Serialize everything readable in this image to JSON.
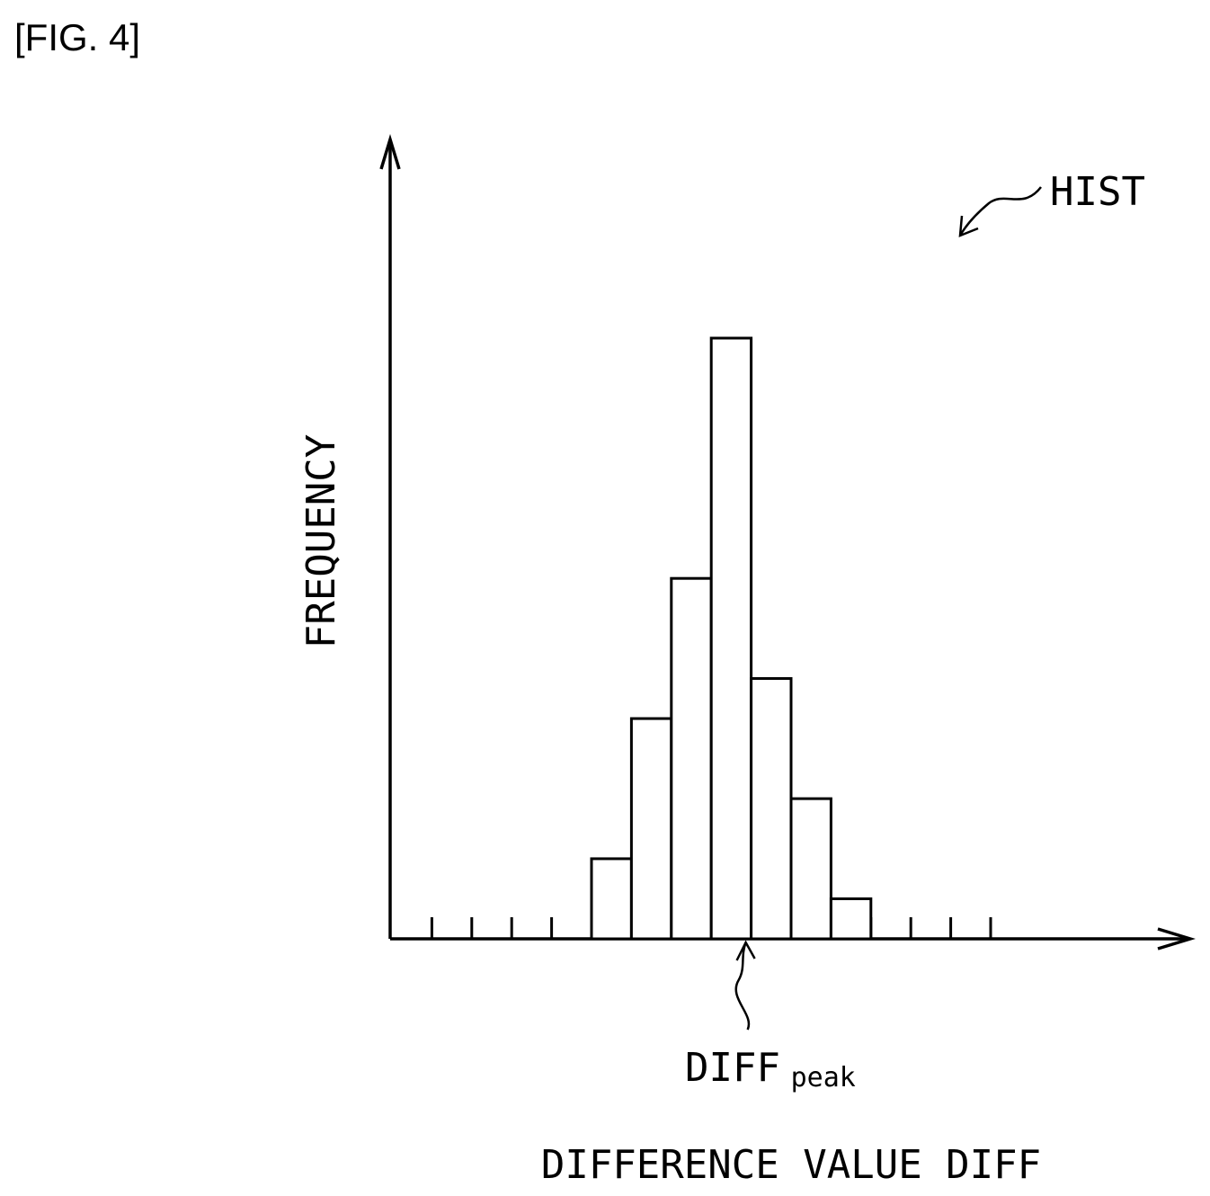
{
  "figure": {
    "label": "[FIG. 4]",
    "reference_label": "HIST"
  },
  "chart_data": {
    "type": "bar",
    "subtype": "histogram",
    "xlabel": "DIFFERENCE VALUE DIFF",
    "ylabel": "FREQUENCY",
    "peak_annotation": {
      "main": "DIFF",
      "subscript": "peak",
      "bin_index": 9
    },
    "bin_count": 16,
    "values": [
      0,
      0,
      0,
      0,
      0,
      2,
      5.5,
      9,
      15,
      6.5,
      3.5,
      1,
      0,
      0,
      0,
      0
    ],
    "ylim": [
      0,
      20
    ],
    "grid": false,
    "legend": false
  }
}
